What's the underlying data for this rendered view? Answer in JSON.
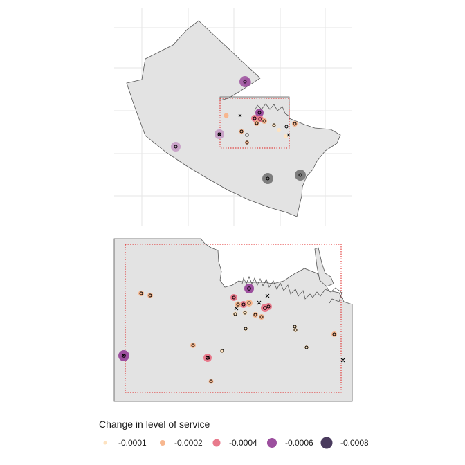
{
  "legend": {
    "title": "Change in level of service",
    "items": [
      {
        "label": "-0.0001",
        "color": "#fde2c0"
      },
      {
        "label": "-0.0002",
        "color": "#f7b78f"
      },
      {
        "label": "-0.0004",
        "color": "#e87a8c"
      },
      {
        "label": "-0.0006",
        "color": "#9c4f9e"
      },
      {
        "label": "-0.0008",
        "color": "#4a3b5e"
      }
    ]
  },
  "colors": {
    "region_fill": "#e3e3e3",
    "region_stroke": "#555555",
    "grid": "#e6e6e6",
    "extent_box": "#e0201f",
    "station_marker": "#000000"
  },
  "icons": [
    "circle-station-icon",
    "cross-station-icon"
  ]
}
